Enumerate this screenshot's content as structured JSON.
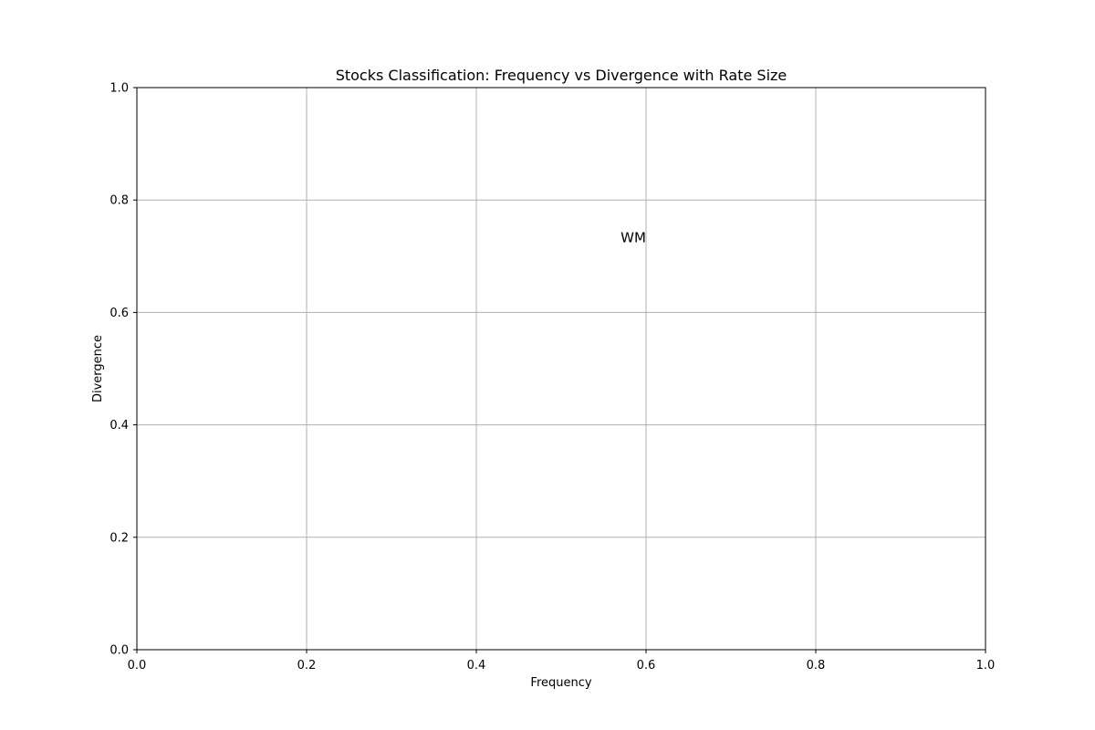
{
  "chart_data": {
    "type": "scatter",
    "title": "Stocks Classification: Frequency vs Divergence with Rate Size",
    "xlabel": "Frequency",
    "ylabel": "Divergence",
    "xlim": [
      0.0,
      1.0
    ],
    "ylim": [
      0.0,
      1.0
    ],
    "xticks": [
      "0.0",
      "0.2",
      "0.4",
      "0.6",
      "0.8",
      "1.0"
    ],
    "yticks": [
      "0.0",
      "0.2",
      "0.4",
      "0.6",
      "0.8",
      "1.0"
    ],
    "grid": true,
    "points": [],
    "annotations": [
      {
        "text": "WM",
        "x": 0.585,
        "y": 0.725
      }
    ]
  },
  "colors": {
    "grid": "#b0b0b0",
    "axes": "#000000",
    "background": "#ffffff"
  }
}
